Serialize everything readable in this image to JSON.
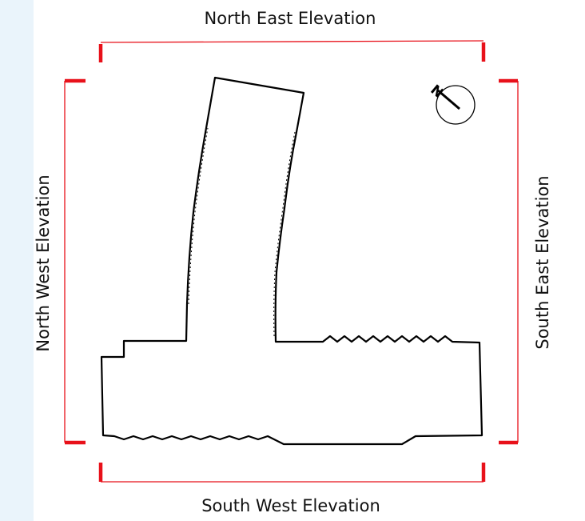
{
  "labels": {
    "north_east": "North East Elevation",
    "south_west": "South West Elevation",
    "north_west": "North West Elevation",
    "south_east": "South East Elevation",
    "north_arrow": "N"
  },
  "colors": {
    "section_line": "#e8111a",
    "outline": "#000000",
    "side_panel": "#eaf4fb"
  },
  "icons": {
    "north_arrow": "north-arrow-icon"
  }
}
